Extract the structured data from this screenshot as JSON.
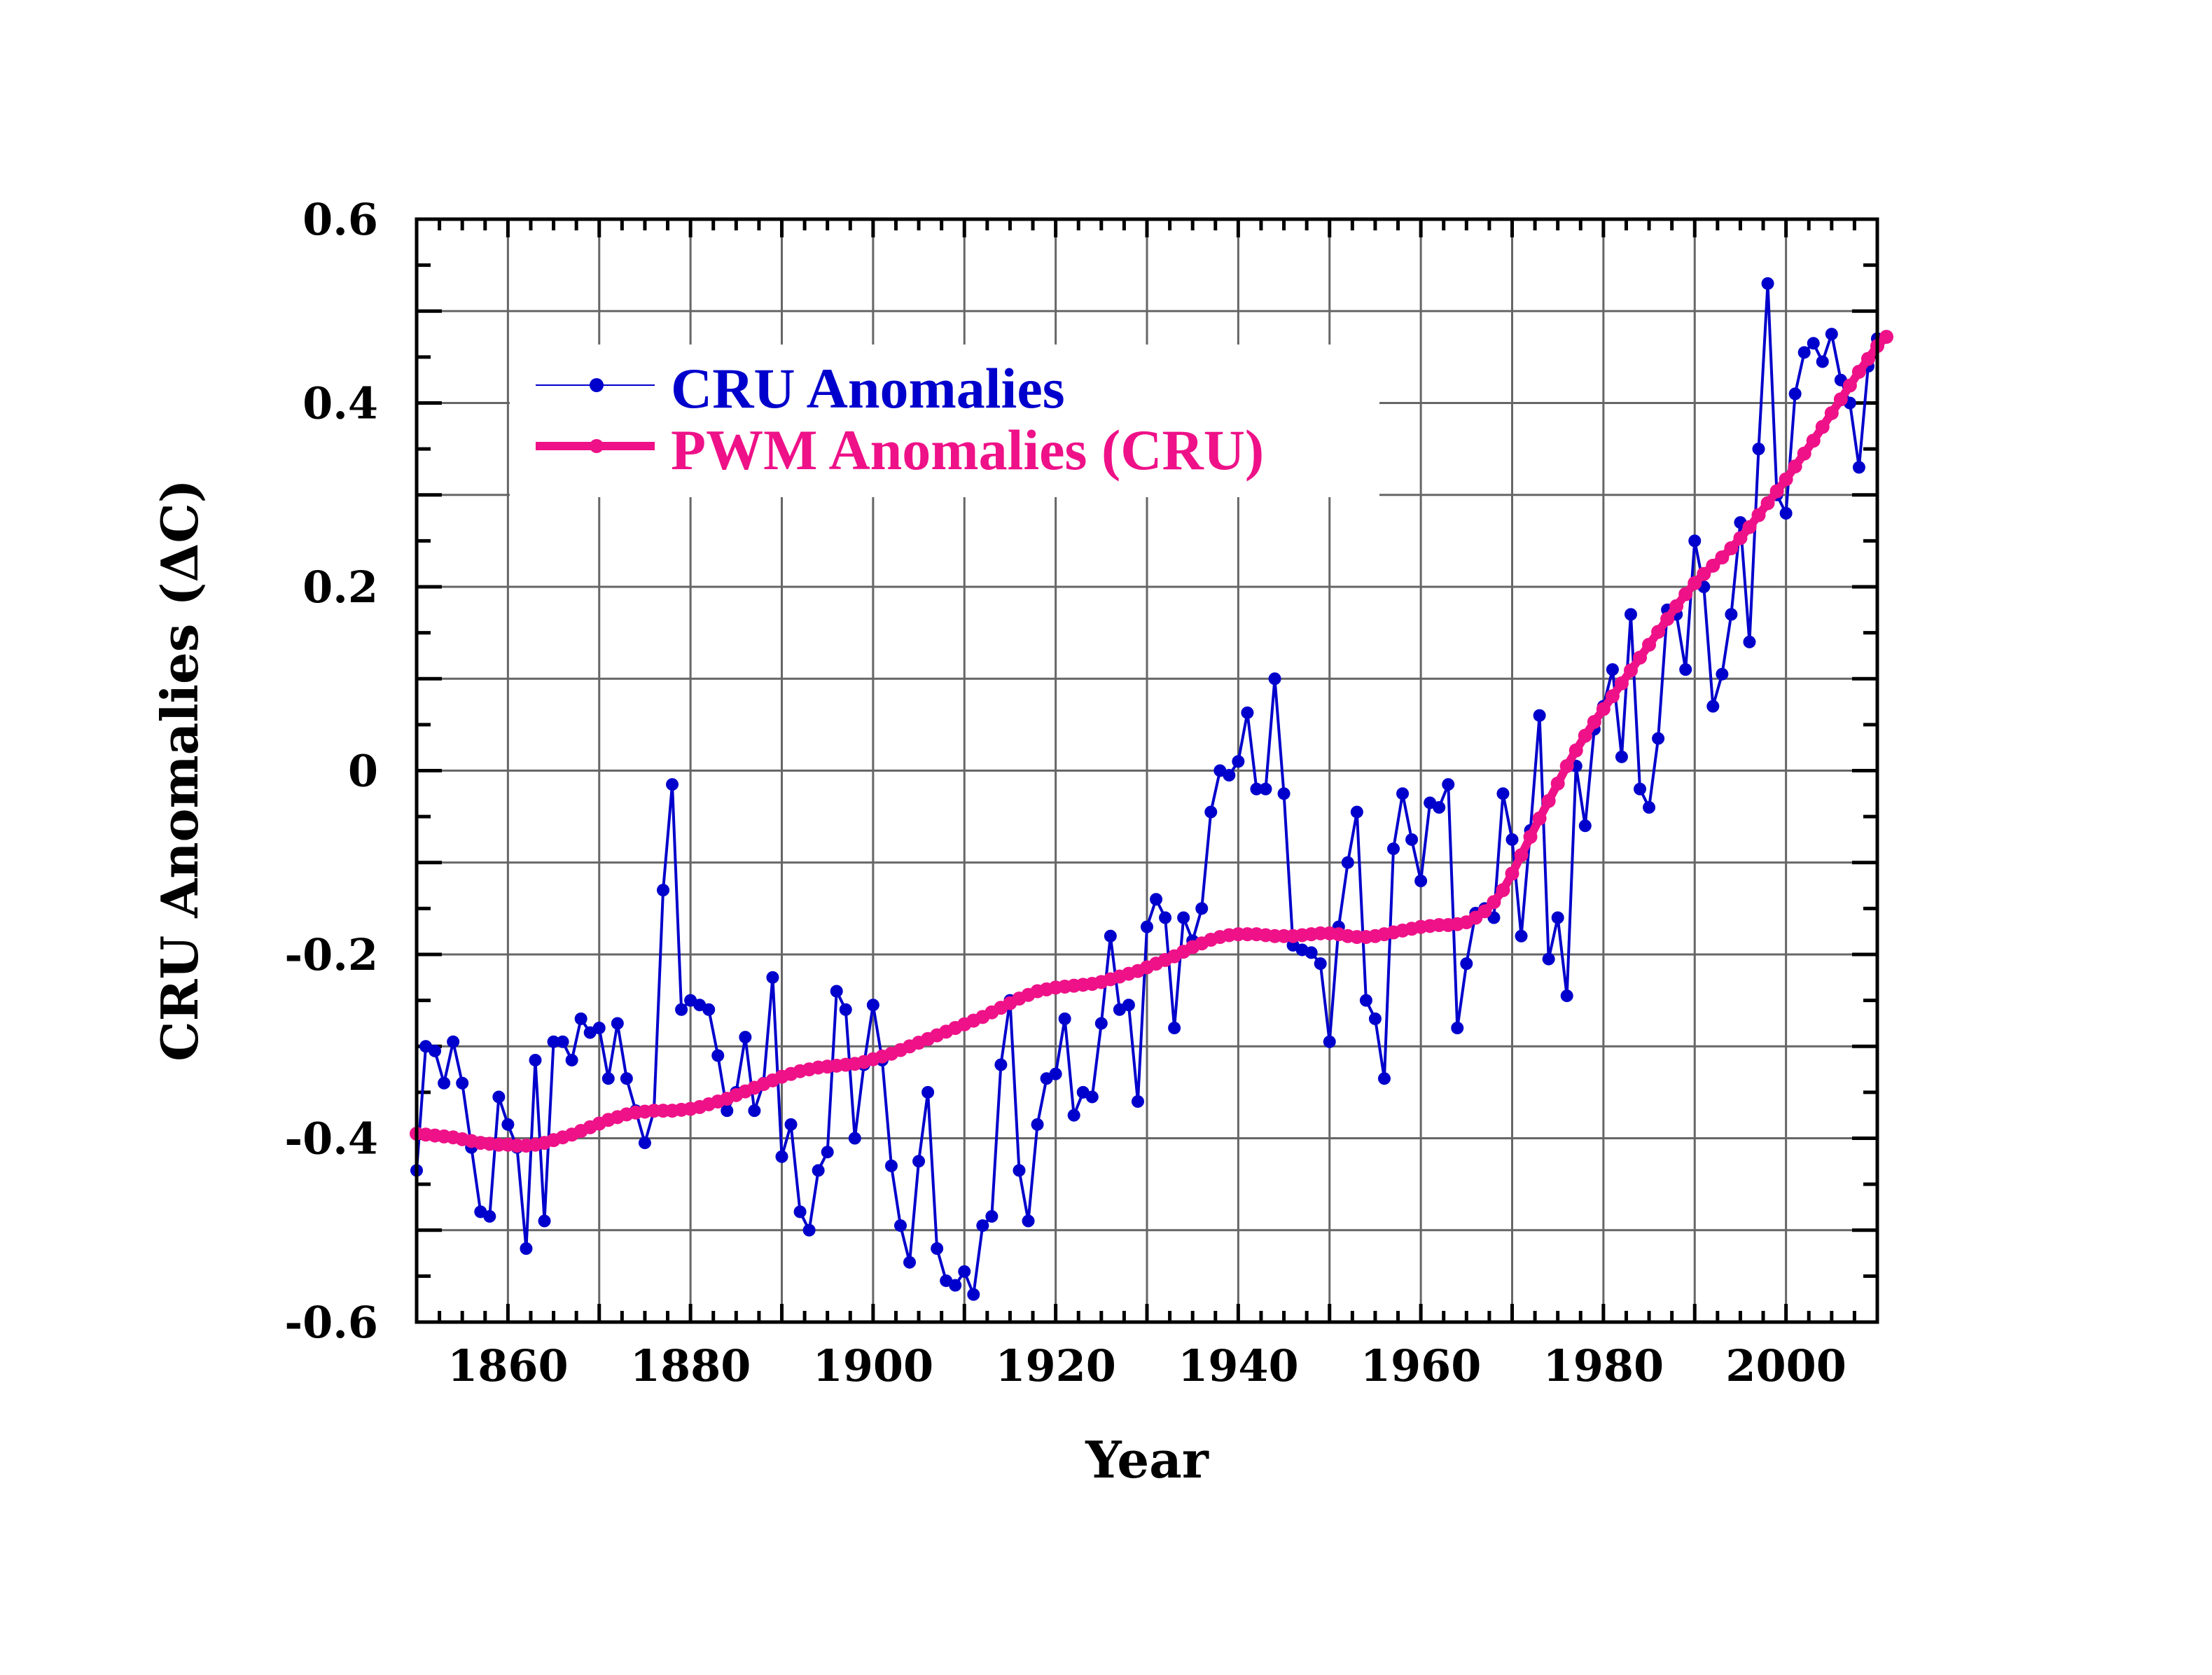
{
  "chart_data": {
    "type": "line",
    "title": "",
    "xlabel": "Year",
    "ylabel": "CRU Anomalies (ΔC)",
    "xlim": [
      1850,
      2010
    ],
    "ylim": [
      -0.6,
      0.6
    ],
    "x_ticks": [
      1860,
      1880,
      1900,
      1920,
      1940,
      1960,
      1980,
      2000
    ],
    "x_tick_labels": [
      "1860",
      "1880",
      "1900",
      "1920",
      "1940",
      "1960",
      "1980",
      "2000"
    ],
    "y_ticks": [
      -0.6,
      -0.4,
      -0.2,
      0,
      0.2,
      0.4,
      0.6
    ],
    "y_tick_labels": [
      "-0.6",
      "-0.4",
      "-0.2",
      "0",
      "0.2",
      "0.4",
      "0.6"
    ],
    "grid": true,
    "legend_position": "top-left",
    "x_start": 1850,
    "series": [
      {
        "name": "CRU Anomalies",
        "color": "#0000CC",
        "values": [
          -0.435,
          -0.3,
          -0.305,
          -0.34,
          -0.295,
          -0.34,
          -0.41,
          -0.48,
          -0.485,
          -0.355,
          -0.385,
          -0.41,
          -0.52,
          -0.315,
          -0.49,
          -0.295,
          -0.295,
          -0.315,
          -0.27,
          -0.285,
          -0.28,
          -0.335,
          -0.275,
          -0.335,
          -0.37,
          -0.405,
          -0.37,
          -0.13,
          -0.015,
          -0.26,
          -0.25,
          -0.255,
          -0.26,
          -0.31,
          -0.37,
          -0.35,
          -0.29,
          -0.37,
          -0.34,
          -0.225,
          -0.42,
          -0.385,
          -0.48,
          -0.5,
          -0.435,
          -0.415,
          -0.24,
          -0.26,
          -0.4,
          -0.32,
          -0.255,
          -0.315,
          -0.43,
          -0.495,
          -0.535,
          -0.425,
          -0.35,
          -0.52,
          -0.555,
          -0.56,
          -0.545,
          -0.57,
          -0.495,
          -0.485,
          -0.32,
          -0.25,
          -0.435,
          -0.49,
          -0.385,
          -0.335,
          -0.33,
          -0.27,
          -0.375,
          -0.35,
          -0.355,
          -0.275,
          -0.18,
          -0.26,
          -0.255,
          -0.36,
          -0.17,
          -0.14,
          -0.16,
          -0.28,
          -0.16,
          -0.185,
          -0.15,
          -0.045,
          0.0,
          -0.005,
          0.01,
          0.063,
          -0.02,
          -0.02,
          0.1,
          -0.025,
          -0.19,
          -0.195,
          -0.198,
          -0.21,
          -0.295,
          -0.17,
          -0.1,
          -0.045,
          -0.25,
          -0.27,
          -0.335,
          -0.085,
          -0.025,
          -0.075,
          -0.12,
          -0.035,
          -0.04,
          -0.015,
          -0.28,
          -0.21,
          -0.155,
          -0.15,
          -0.16,
          -0.025,
          -0.075,
          -0.18,
          -0.065,
          0.06,
          -0.205,
          -0.16,
          -0.245,
          0.005,
          -0.06,
          0.045,
          0.07,
          0.11,
          0.015,
          0.17,
          -0.02,
          -0.04,
          0.035,
          0.175,
          0.17,
          0.11,
          0.25,
          0.2,
          0.07,
          0.105,
          0.17,
          0.27,
          0.14,
          0.35,
          0.53,
          0.3,
          0.28,
          0.41,
          0.455,
          0.465,
          0.445,
          0.475,
          0.425,
          0.4,
          0.33,
          0.44,
          0.47
        ]
      },
      {
        "name": "PWM Anomalies (CRU)",
        "color": "#EE1188",
        "values": [
          -0.395,
          -0.396,
          -0.397,
          -0.398,
          -0.399,
          -0.401,
          -0.403,
          -0.405,
          -0.406,
          -0.407,
          -0.407,
          -0.408,
          -0.408,
          -0.407,
          -0.405,
          -0.402,
          -0.399,
          -0.396,
          -0.392,
          -0.388,
          -0.384,
          -0.38,
          -0.377,
          -0.374,
          -0.372,
          -0.371,
          -0.37,
          -0.37,
          -0.37,
          -0.369,
          -0.368,
          -0.366,
          -0.363,
          -0.36,
          -0.357,
          -0.353,
          -0.349,
          -0.345,
          -0.341,
          -0.337,
          -0.333,
          -0.33,
          -0.327,
          -0.325,
          -0.323,
          -0.322,
          -0.321,
          -0.32,
          -0.319,
          -0.317,
          -0.314,
          -0.311,
          -0.308,
          -0.304,
          -0.3,
          -0.296,
          -0.292,
          -0.288,
          -0.284,
          -0.28,
          -0.276,
          -0.272,
          -0.268,
          -0.263,
          -0.258,
          -0.253,
          -0.248,
          -0.244,
          -0.24,
          -0.238,
          -0.236,
          -0.235,
          -0.234,
          -0.233,
          -0.232,
          -0.23,
          -0.227,
          -0.224,
          -0.221,
          -0.218,
          -0.214,
          -0.21,
          -0.206,
          -0.202,
          -0.197,
          -0.192,
          -0.188,
          -0.184,
          -0.181,
          -0.179,
          -0.178,
          -0.178,
          -0.178,
          -0.179,
          -0.18,
          -0.18,
          -0.18,
          -0.179,
          -0.178,
          -0.177,
          -0.177,
          -0.178,
          -0.18,
          -0.181,
          -0.181,
          -0.18,
          -0.178,
          -0.176,
          -0.174,
          -0.172,
          -0.17,
          -0.169,
          -0.168,
          -0.168,
          -0.167,
          -0.165,
          -0.16,
          -0.153,
          -0.143,
          -0.13,
          -0.112,
          -0.092,
          -0.072,
          -0.052,
          -0.033,
          -0.014,
          0.005,
          0.022,
          0.038,
          0.053,
          0.067,
          0.081,
          0.095,
          0.109,
          0.123,
          0.137,
          0.151,
          0.165,
          0.179,
          0.192,
          0.204,
          0.214,
          0.223,
          0.232,
          0.242,
          0.253,
          0.265,
          0.278,
          0.291,
          0.304,
          0.317,
          0.331,
          0.345,
          0.359,
          0.374,
          0.389,
          0.404,
          0.419,
          0.434,
          0.448,
          0.462,
          0.472
        ]
      }
    ]
  }
}
